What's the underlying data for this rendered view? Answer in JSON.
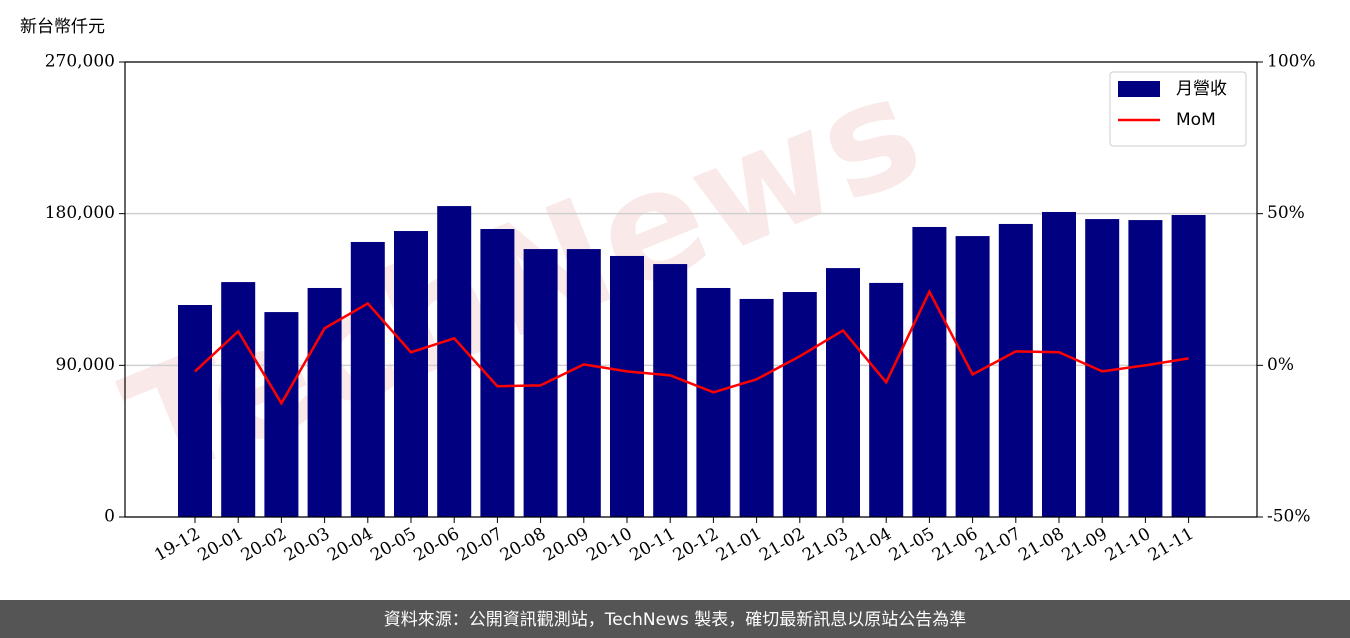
{
  "chart_data": {
    "type": "bar",
    "y_axis_label": "新台幣仟元",
    "watermark": "TechNews",
    "footer": "資料來源：公開資訊觀測站，TechNews 製表，確切最新訊息以原站公告為準",
    "categories": [
      "19-12",
      "20-01",
      "20-02",
      "20-03",
      "20-04",
      "20-05",
      "20-06",
      "20-07",
      "20-08",
      "20-09",
      "20-10",
      "20-11",
      "20-12",
      "21-01",
      "21-02",
      "21-03",
      "21-04",
      "21-05",
      "21-06",
      "21-07",
      "21-08",
      "21-09",
      "21-10",
      "21-11"
    ],
    "series": [
      {
        "name": "月營收",
        "type": "bar",
        "color": "#000080",
        "values": [
          125800,
          139400,
          121600,
          135900,
          163200,
          169700,
          184500,
          170900,
          159000,
          159000,
          154900,
          150100,
          135900,
          129400,
          133500,
          147700,
          138900,
          172100,
          166700,
          173900,
          181000,
          176800,
          176200,
          179200
        ]
      },
      {
        "name": "MoM",
        "type": "line",
        "axis": "y2",
        "color": "#ff0000",
        "values": [
          -2,
          11.2,
          -12.5,
          12.2,
          20.4,
          4.3,
          8.9,
          -6.9,
          -6.6,
          0.3,
          -2,
          -3.3,
          -8.9,
          -4.6,
          3,
          11.5,
          -5.6,
          24.3,
          -3,
          4.6,
          4.3,
          -2,
          0,
          2.3
        ]
      }
    ],
    "ylim": [
      0,
      270000
    ],
    "yticks": [
      0,
      {
        "value": 90000,
        "label": "90,000"
      },
      {
        "value": 180000,
        "label": "180,000"
      },
      {
        "value": 270000,
        "label": "270,000"
      }
    ],
    "y2lim": [
      -50,
      100
    ],
    "y2ticks": [
      {
        "value": -50,
        "label": "-50%"
      },
      {
        "value": 0,
        "label": "0%"
      },
      {
        "value": 50,
        "label": "50%"
      },
      {
        "value": 100,
        "label": "100%"
      }
    ],
    "grid": true,
    "legend": "upper right"
  }
}
